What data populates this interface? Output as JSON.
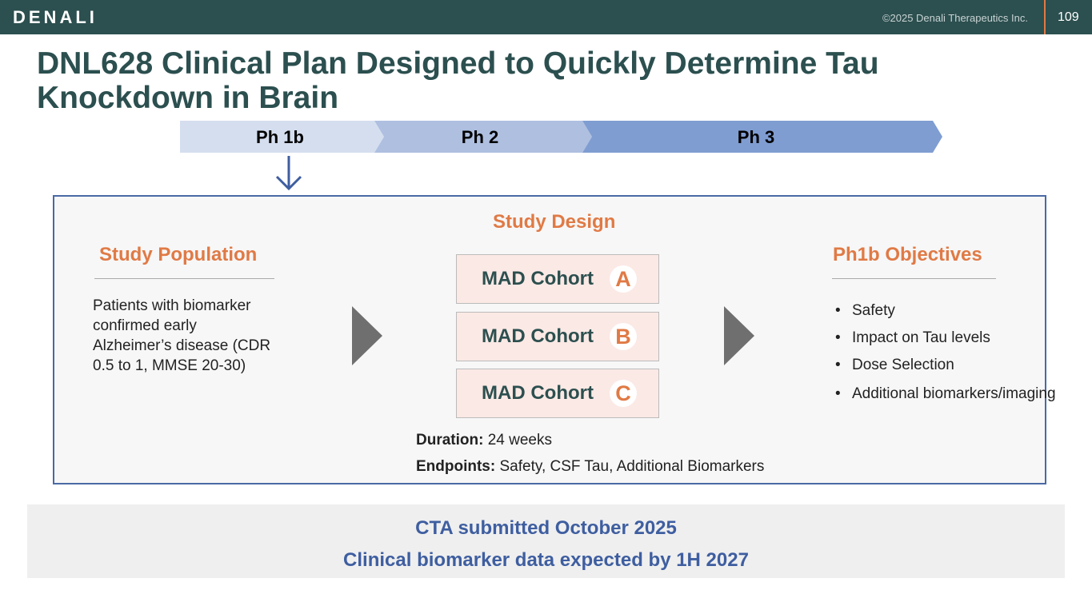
{
  "header": {
    "logo": "DENALI",
    "copyright": "©2025 Denali Therapeutics Inc.",
    "page": "109"
  },
  "title": "DNL628 Clinical Plan Designed to Quickly Determine Tau Knockdown in Brain",
  "phases": [
    "Ph 1b",
    "Ph 2",
    "Ph 3"
  ],
  "population": {
    "heading": "Study Population",
    "text": "Patients with biomarker confirmed early Alzheimer’s disease (CDR 0.5 to 1, MMSE 20-30)"
  },
  "design": {
    "heading": "Study Design",
    "cohort": "MAD Cohort",
    "cohorts": [
      "A",
      "B",
      "C"
    ],
    "duration_label": "Duration:",
    "duration": "24 weeks",
    "endpoints_label": "Endpoints:",
    "endpoints": "Safety, CSF Tau, Additional Biomarkers"
  },
  "objectives": {
    "heading": "Ph1b Objectives",
    "items": [
      "Safety",
      "Impact on Tau levels",
      "Dose Selection",
      "Additional biomarkers/imaging"
    ]
  },
  "footer": {
    "line1": "CTA submitted October 2025",
    "line2": "Clinical biomarker data expected by 1H 2027"
  }
}
